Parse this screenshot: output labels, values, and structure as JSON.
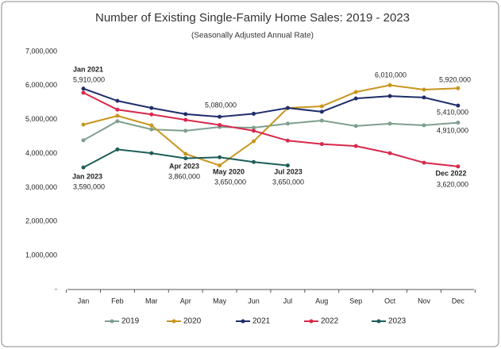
{
  "chart_data": {
    "type": "line",
    "title": "Number of Existing Single-Family Home Sales: 2019 - 2023",
    "subtitle": "(Seasonally Adjusted Annual Rate)",
    "categories": [
      "Jan",
      "Feb",
      "Mar",
      "Apr",
      "May",
      "Jun",
      "Jul",
      "Aug",
      "Sep",
      "Oct",
      "Nov",
      "Dec"
    ],
    "ylim": [
      0,
      7000000
    ],
    "yticks": [
      {
        "value": 0,
        "label": "-"
      },
      {
        "value": 1000000,
        "label": "1,000,000"
      },
      {
        "value": 2000000,
        "label": "2,000,000"
      },
      {
        "value": 3000000,
        "label": "3,000,000"
      },
      {
        "value": 4000000,
        "label": "4,000,000"
      },
      {
        "value": 5000000,
        "label": "5,000,000"
      },
      {
        "value": 6000000,
        "label": "6,000,000"
      },
      {
        "value": 7000000,
        "label": "7,000,000"
      }
    ],
    "grid": false,
    "legend": "bottom",
    "series": [
      {
        "name": "2019",
        "color": "#7f9f8f",
        "values": [
          4390000,
          4950000,
          4710000,
          4670000,
          4780000,
          4760000,
          4880000,
          4970000,
          4810000,
          4880000,
          4830000,
          4910000
        ],
        "value_labels": [
          null,
          null,
          null,
          null,
          null,
          null,
          null,
          null,
          null,
          null,
          null,
          "4,910,000"
        ]
      },
      {
        "name": "2020",
        "color": "#c8951d",
        "values": [
          4850000,
          5110000,
          4830000,
          3990000,
          3650000,
          4360000,
          5340000,
          5390000,
          5810000,
          6010000,
          5880000,
          5920000
        ],
        "value_labels": [
          null,
          null,
          null,
          null,
          "3,650,000",
          null,
          null,
          null,
          null,
          "6,010,000",
          null,
          "5,920,000"
        ]
      },
      {
        "name": "2021",
        "color": "#1f2d6b",
        "values": [
          5910000,
          5550000,
          5340000,
          5160000,
          5080000,
          5170000,
          5340000,
          5230000,
          5620000,
          5690000,
          5650000,
          5410000
        ],
        "value_labels": [
          "5,910,000",
          null,
          null,
          null,
          "5,080,000",
          null,
          null,
          null,
          null,
          null,
          null,
          "5,410,000"
        ]
      },
      {
        "name": "2022",
        "color": "#d8284b",
        "values": [
          5790000,
          5290000,
          5150000,
          4990000,
          4840000,
          4670000,
          4380000,
          4280000,
          4220000,
          4010000,
          3730000,
          3620000
        ],
        "value_labels": [
          null,
          null,
          null,
          null,
          null,
          null,
          null,
          null,
          null,
          null,
          null,
          "3,620,000"
        ]
      },
      {
        "name": "2023",
        "color": "#1e5e5a",
        "values": [
          3590000,
          4120000,
          4010000,
          3860000,
          3890000,
          3750000,
          3650000,
          null,
          null,
          null,
          null,
          null
        ],
        "value_labels": [
          "3,590,000",
          null,
          null,
          "3,860,000",
          null,
          null,
          "3,650,000",
          null,
          null,
          null,
          null,
          null
        ]
      }
    ],
    "annotations": [
      "Jan 2021",
      "Jan 2023",
      "Apr 2023",
      "May 2020",
      "Jul 2023",
      "Dec 2022"
    ]
  }
}
